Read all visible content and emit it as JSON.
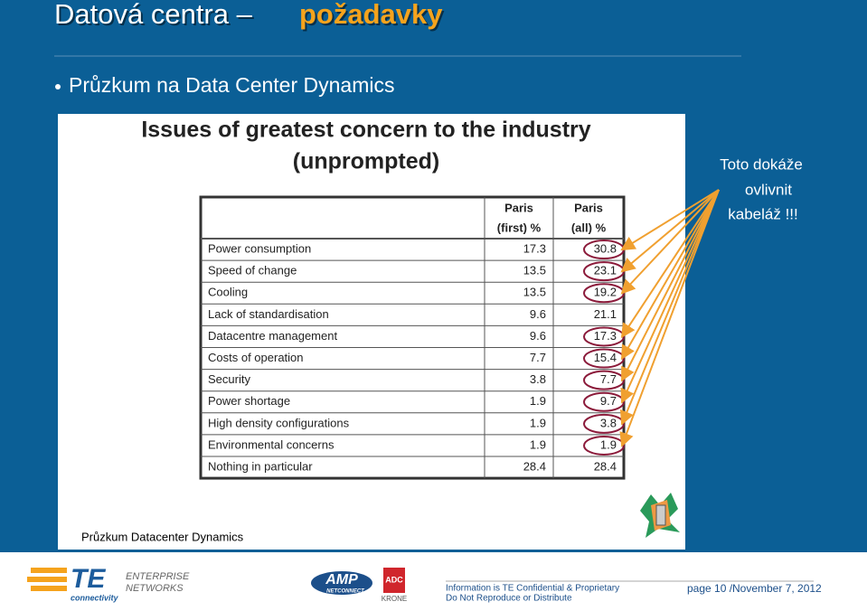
{
  "header": {
    "title": "Datová centra –",
    "title_highlight": "požadavky",
    "bullet": "Průzkum na Data Center Dynamics"
  },
  "figure": {
    "title_lines": [
      "Issues of greatest concern to the industry",
      "(unprompted)"
    ],
    "table": {
      "headers": [
        [
          "Paris",
          "(first) %"
        ],
        [
          "Paris",
          "(all) %"
        ]
      ],
      "rows": [
        [
          "Power consumption",
          "17.3",
          "30.8"
        ],
        [
          "Speed of change",
          "13.5",
          "23.1"
        ],
        [
          "Cooling",
          "13.5",
          "19.2"
        ],
        [
          "Lack of standardisation",
          "9.6",
          "21.1"
        ],
        [
          "Datacentre management",
          "9.6",
          "17.3"
        ],
        [
          "Costs of operation",
          "7.7",
          "15.4"
        ],
        [
          "Security",
          "3.8",
          "7.7"
        ],
        [
          "Power shortage",
          "1.9",
          "9.7"
        ],
        [
          "High density configurations",
          "1.9",
          "3.8"
        ],
        [
          "Environmental concerns",
          "1.9",
          "1.9"
        ],
        [
          "Nothing in particular",
          "28.4",
          "28.4"
        ]
      ]
    },
    "caption": "Průzkum Datacenter Dynamics"
  },
  "note": [
    "Toto dokáže",
    "ovlivnit",
    "kabeláž !!!"
  ],
  "footer": {
    "te_logo": "TE",
    "te_sub": "connectivity",
    "division": [
      "ENTERPRISE",
      "NETWORKS"
    ],
    "amp": "AMP",
    "amp_sub": "NETCONNECT",
    "adc": "ADC",
    "krone": "KRONE",
    "info": [
      "Information  is TE Confidential & Proprietary",
      "Do Not Reproduce or Distribute"
    ],
    "page": "page 10 /",
    "date": "November 7, 2012"
  }
}
